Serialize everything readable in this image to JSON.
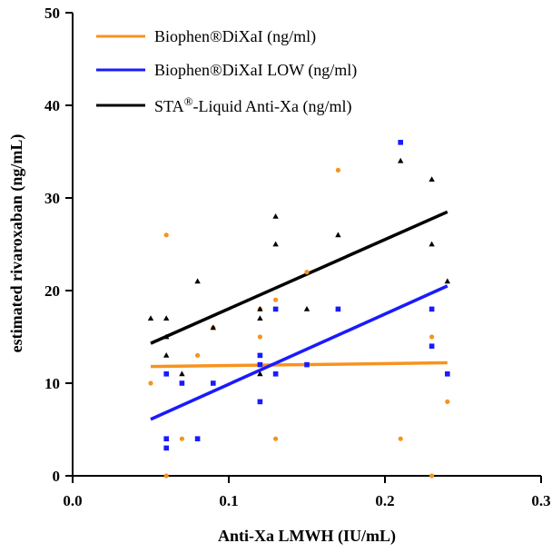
{
  "chart_data": {
    "type": "scatter",
    "xlabel": "Anti-Xa LMWH (IU/mL)",
    "ylabel": "estimated rivaroxaban (ng/mL)",
    "xlim": [
      0,
      0.3
    ],
    "ylim": [
      0,
      50
    ],
    "x_ticks": [
      "0.0",
      "0.1",
      "0.2",
      "0.3"
    ],
    "y_ticks": [
      "0",
      "10",
      "20",
      "30",
      "40",
      "50"
    ],
    "legend_position": "top-left",
    "grid": false,
    "series": [
      {
        "name": "Biophen®DiXaI (ng/ml)",
        "color": "#f7931e",
        "marker": "circle",
        "points": [
          [
            0.05,
            10
          ],
          [
            0.06,
            26
          ],
          [
            0.06,
            0
          ],
          [
            0.07,
            4
          ],
          [
            0.08,
            13
          ],
          [
            0.09,
            16
          ],
          [
            0.12,
            18
          ],
          [
            0.12,
            15
          ],
          [
            0.12,
            8
          ],
          [
            0.13,
            19
          ],
          [
            0.13,
            4
          ],
          [
            0.15,
            22
          ],
          [
            0.17,
            33
          ],
          [
            0.21,
            4
          ],
          [
            0.23,
            15
          ],
          [
            0.23,
            0
          ],
          [
            0.24,
            8
          ]
        ],
        "fit": [
          [
            0.05,
            11.8
          ],
          [
            0.24,
            12.2
          ]
        ]
      },
      {
        "name": "Biophen®DiXaI LOW (ng/ml)",
        "color": "#1a1aff",
        "marker": "square",
        "points": [
          [
            0.06,
            11
          ],
          [
            0.06,
            4
          ],
          [
            0.06,
            3
          ],
          [
            0.07,
            10
          ],
          [
            0.08,
            4
          ],
          [
            0.09,
            10
          ],
          [
            0.12,
            13
          ],
          [
            0.12,
            12
          ],
          [
            0.12,
            8
          ],
          [
            0.13,
            18
          ],
          [
            0.13,
            11
          ],
          [
            0.15,
            12
          ],
          [
            0.17,
            18
          ],
          [
            0.21,
            36
          ],
          [
            0.23,
            18
          ],
          [
            0.23,
            14
          ],
          [
            0.24,
            11
          ]
        ],
        "fit": [
          [
            0.05,
            6.1
          ],
          [
            0.24,
            20.5
          ]
        ]
      },
      {
        "name_main": "STA",
        "name_sup": "®",
        "name_rest": "-Liquid Anti-Xa (ng/ml)",
        "color": "#000000",
        "marker": "triangle",
        "points": [
          [
            0.05,
            17
          ],
          [
            0.06,
            17
          ],
          [
            0.06,
            13
          ],
          [
            0.06,
            15
          ],
          [
            0.07,
            11
          ],
          [
            0.08,
            21
          ],
          [
            0.09,
            16
          ],
          [
            0.12,
            18
          ],
          [
            0.12,
            17
          ],
          [
            0.12,
            11
          ],
          [
            0.13,
            28
          ],
          [
            0.13,
            25
          ],
          [
            0.15,
            18
          ],
          [
            0.17,
            26
          ],
          [
            0.21,
            34
          ],
          [
            0.23,
            32
          ],
          [
            0.23,
            25
          ],
          [
            0.24,
            21
          ]
        ],
        "fit": [
          [
            0.05,
            14.3
          ],
          [
            0.24,
            28.5
          ]
        ]
      }
    ]
  }
}
